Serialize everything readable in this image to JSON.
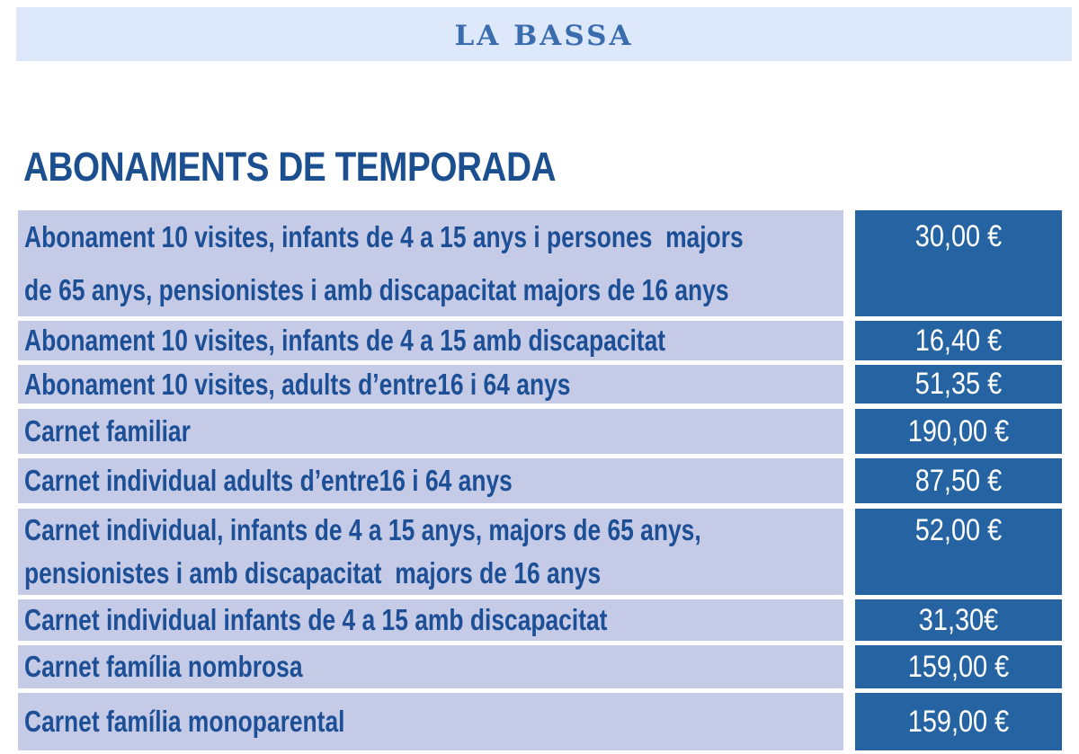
{
  "header": {
    "title": "LA BASSA"
  },
  "title": "ABONAMENTS DE TEMPORADA",
  "table": {
    "rows": [
      [
        "Abonament 10 visites, infants de 4 a 15 anys i persones  majors\nde 65 anys, pensionistes i amb discapacitat majors de 16 anys",
        "30,00 €"
      ],
      [
        "Abonament 10 visites, infants de 4 a 15 amb discapacitat",
        "16,40 €"
      ],
      [
        "Abonament 10 visites, adults d’entre16 i 64 anys",
        "51,35 €"
      ],
      [
        "Carnet familiar",
        "190,00 €"
      ],
      [
        "Carnet individual adults d’entre16 i 64 anys",
        "87,50 €"
      ],
      [
        "Carnet individual, infants de 4 a 15 anys, majors de 65 anys,\npensionistes i amb discapacitat  majors de 16 anys",
        "52,00 €"
      ],
      [
        "Carnet individual infants de 4 a 15 amb discapacitat",
        "31,30€"
      ],
      [
        "Carnet família nombrosa",
        "159,00 €"
      ],
      [
        "Carnet família monoparental",
        "159,00 €"
      ]
    ]
  }
}
